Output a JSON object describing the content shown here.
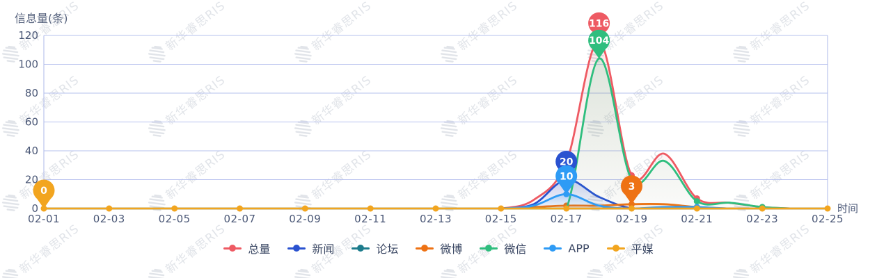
{
  "title": {
    "text": "信息量(条)"
  },
  "watermark": {
    "text": "新华睿思RIS"
  },
  "chart_data": {
    "type": "line",
    "smooth": true,
    "grid": true,
    "legend_position": "bottom",
    "xlabel": "时间",
    "ylabel": "信息量(条)",
    "ylim": [
      0,
      120
    ],
    "y_ticks": [
      "0",
      "20",
      "40",
      "60",
      "80",
      "100",
      "120"
    ],
    "x": [
      "02-01",
      "02-02",
      "02-03",
      "02-04",
      "02-05",
      "02-06",
      "02-07",
      "02-08",
      "02-09",
      "02-10",
      "02-11",
      "02-12",
      "02-13",
      "02-14",
      "02-15",
      "02-16",
      "02-17",
      "02-18",
      "02-19",
      "02-20",
      "02-21",
      "02-22",
      "02-23",
      "02-24",
      "02-25"
    ],
    "x_shown_ticks": [
      "02-01",
      "02-03",
      "02-05",
      "02-07",
      "02-09",
      "02-11",
      "02-13",
      "02-15",
      "02-17",
      "02-19",
      "02-21",
      "02-23",
      "02-25"
    ],
    "series": [
      {
        "key": "total",
        "name": "总量",
        "color": "#EE5A63",
        "fill_alpha": 0.13,
        "values": [
          0,
          0,
          0,
          0,
          0,
          0,
          0,
          0,
          0,
          0,
          0,
          0,
          0,
          0,
          0,
          6,
          32,
          116,
          23,
          38,
          7,
          4,
          1,
          0,
          0
        ]
      },
      {
        "key": "news",
        "name": "新闻",
        "color": "#2A52D0",
        "fill_alpha": 0.25,
        "values": [
          0,
          0,
          0,
          0,
          0,
          0,
          0,
          0,
          0,
          0,
          0,
          0,
          0,
          0,
          0,
          3,
          20,
          8,
          0,
          0,
          0,
          0,
          0,
          0,
          0
        ]
      },
      {
        "key": "forum",
        "name": "论坛",
        "color": "#1D7C8C",
        "fill_alpha": 0.18,
        "values": [
          0,
          0,
          0,
          0,
          0,
          0,
          0,
          0,
          0,
          0,
          0,
          0,
          0,
          0,
          0,
          0,
          0,
          0,
          0,
          0,
          0,
          0,
          0,
          0,
          0
        ]
      },
      {
        "key": "weibo",
        "name": "微博",
        "color": "#EE7214",
        "fill_alpha": 0.18,
        "values": [
          0,
          0,
          0,
          0,
          0,
          0,
          0,
          0,
          0,
          0,
          0,
          0,
          0,
          0,
          0,
          1,
          2,
          2,
          3,
          3,
          1,
          0,
          0,
          0,
          0
        ]
      },
      {
        "key": "wechat",
        "name": "微信",
        "color": "#2FBE7E",
        "fill_alpha": 0.15,
        "values": [
          0,
          0,
          0,
          0,
          0,
          0,
          0,
          0,
          0,
          0,
          0,
          0,
          0,
          0,
          0,
          0,
          0,
          104,
          20,
          33,
          5,
          4,
          1,
          0,
          0
        ]
      },
      {
        "key": "app",
        "name": "APP",
        "color": "#2E9BF5",
        "fill_alpha": 0.25,
        "values": [
          0,
          0,
          0,
          0,
          0,
          0,
          0,
          0,
          0,
          0,
          0,
          0,
          0,
          0,
          0,
          2,
          10,
          2,
          0,
          1,
          1,
          0,
          0,
          0,
          0
        ]
      },
      {
        "key": "print",
        "name": "平媒",
        "color": "#F2A51F",
        "fill_alpha": 0.18,
        "values": [
          0,
          0,
          0,
          0,
          0,
          0,
          0,
          0,
          0,
          0,
          0,
          0,
          0,
          0,
          0,
          0,
          0,
          0,
          0,
          0,
          0,
          0,
          0,
          0,
          0
        ]
      }
    ],
    "balloons": [
      {
        "series": "total",
        "x": "02-18",
        "value": 116,
        "label": "116"
      },
      {
        "series": "wechat",
        "x": "02-18",
        "value": 104,
        "label": "104"
      },
      {
        "series": "news",
        "x": "02-17",
        "value": 20,
        "label": "20"
      },
      {
        "series": "app",
        "x": "02-17",
        "value": 10,
        "label": "10"
      },
      {
        "series": "print",
        "x": "02-01",
        "value": 0,
        "label": "0"
      },
      {
        "series": "weibo",
        "x": "02-19",
        "value": 3,
        "label": "3"
      }
    ]
  },
  "theme": {
    "grid_color": "#B6C0EE",
    "axis_line_color": "#AEB9EA",
    "axis_label_color": "#4A5776",
    "title_color": "#57637E",
    "legend_text_color": "#3A4763",
    "background": "#FFFFFF"
  }
}
